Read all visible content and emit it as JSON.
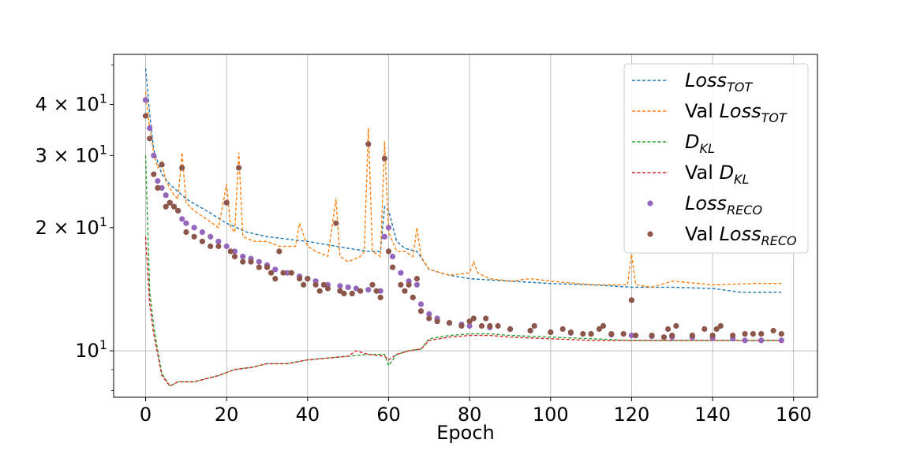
{
  "chart_data": {
    "type": "line",
    "xlabel": "Epoch",
    "ylabel": "",
    "xlim": [
      -7.9,
      165.9
    ],
    "ylim": [
      7.7,
      53
    ],
    "yscale": "log",
    "grid": true,
    "legend_position": "top-right",
    "x_ticks": [
      0,
      20,
      40,
      60,
      80,
      100,
      120,
      140,
      160
    ],
    "y_ticks": [
      {
        "value": 10,
        "base": "10",
        "exp": "1",
        "coef": ""
      },
      {
        "value": 20,
        "base": "10",
        "exp": "1",
        "coef": "2 × "
      },
      {
        "value": 30,
        "base": "10",
        "exp": "1",
        "coef": "3 × "
      },
      {
        "value": 40,
        "base": "10",
        "exp": "1",
        "coef": "4 × "
      }
    ],
    "series": [
      {
        "label_main": "Loss",
        "label_prefix": "",
        "label_sub": "TOT",
        "style": "dashed",
        "color": "#1f77b4",
        "points": [
          [
            0,
            49
          ],
          [
            1,
            38
          ],
          [
            2,
            31
          ],
          [
            4,
            27
          ],
          [
            6,
            25.5
          ],
          [
            10,
            23.5
          ],
          [
            15,
            22
          ],
          [
            20,
            20.5
          ],
          [
            25,
            19.5
          ],
          [
            30,
            19
          ],
          [
            40,
            18.5
          ],
          [
            50,
            17.8
          ],
          [
            55,
            17.5
          ],
          [
            58,
            17.5
          ],
          [
            59,
            22.5
          ],
          [
            60,
            22
          ],
          [
            62,
            18.5
          ],
          [
            64,
            17.8
          ],
          [
            67,
            17.5
          ],
          [
            70,
            15.8
          ],
          [
            75,
            15.3
          ],
          [
            80,
            15
          ],
          [
            90,
            14.8
          ],
          [
            100,
            14.6
          ],
          [
            110,
            14.5
          ],
          [
            120,
            14.3
          ],
          [
            130,
            14.3
          ],
          [
            140,
            14.2
          ],
          [
            147,
            13.9
          ],
          [
            157,
            13.9
          ]
        ]
      },
      {
        "label_main": "Loss",
        "label_prefix": "Val ",
        "label_sub": "TOT",
        "style": "dashed",
        "color": "#ff7f0e",
        "points": [
          [
            0,
            43
          ],
          [
            1,
            35
          ],
          [
            2,
            30.5
          ],
          [
            3,
            28
          ],
          [
            4,
            29
          ],
          [
            5,
            26
          ],
          [
            6,
            25
          ],
          [
            7,
            24
          ],
          [
            8,
            23.5
          ],
          [
            9,
            30.5
          ],
          [
            10,
            23
          ],
          [
            12,
            22
          ],
          [
            15,
            21
          ],
          [
            18,
            20
          ],
          [
            20,
            25.5
          ],
          [
            21,
            20
          ],
          [
            22,
            19.5
          ],
          [
            23,
            30.5
          ],
          [
            24,
            19
          ],
          [
            27,
            18.5
          ],
          [
            30,
            18.5
          ],
          [
            33,
            18
          ],
          [
            35,
            18
          ],
          [
            37,
            18
          ],
          [
            38,
            20.5
          ],
          [
            40,
            18
          ],
          [
            42,
            17.5
          ],
          [
            45,
            17
          ],
          [
            47,
            23.5
          ],
          [
            48,
            17
          ],
          [
            50,
            16.5
          ],
          [
            53,
            17
          ],
          [
            54,
            17.5
          ],
          [
            55,
            35
          ],
          [
            56,
            17.5
          ],
          [
            58,
            17
          ],
          [
            59,
            32.5
          ],
          [
            60,
            19.5
          ],
          [
            62,
            17.5
          ],
          [
            64,
            17.5
          ],
          [
            66,
            17
          ],
          [
            67,
            20
          ],
          [
            68,
            17
          ],
          [
            70,
            15.8
          ],
          [
            75,
            15.3
          ],
          [
            80,
            15.5
          ],
          [
            81,
            16.5
          ],
          [
            82,
            15.5
          ],
          [
            85,
            15
          ],
          [
            90,
            14.8
          ],
          [
            95,
            15
          ],
          [
            100,
            14.8
          ],
          [
            110,
            14.5
          ],
          [
            119,
            14.5
          ],
          [
            120,
            17.2
          ],
          [
            121,
            14.5
          ],
          [
            125,
            14.3
          ],
          [
            130,
            14.8
          ],
          [
            140,
            14.5
          ],
          [
            150,
            14.6
          ],
          [
            157,
            14.6
          ]
        ]
      },
      {
        "label_main": "D",
        "label_prefix": "",
        "label_sub": "KL",
        "style": "dashed",
        "color": "#2ca02c",
        "points": [
          [
            0,
            30
          ],
          [
            1,
            14
          ],
          [
            2,
            11.5
          ],
          [
            3,
            10
          ],
          [
            4,
            8.8
          ],
          [
            6,
            8.2
          ],
          [
            8,
            8.4
          ],
          [
            12,
            8.4
          ],
          [
            18,
            8.7
          ],
          [
            22,
            9
          ],
          [
            26,
            9.1
          ],
          [
            30,
            9.3
          ],
          [
            35,
            9.3
          ],
          [
            40,
            9.5
          ],
          [
            45,
            9.6
          ],
          [
            50,
            9.7
          ],
          [
            55,
            9.8
          ],
          [
            59,
            9.8
          ],
          [
            60,
            9.2
          ],
          [
            62,
            9.8
          ],
          [
            65,
            10
          ],
          [
            68,
            10.1
          ],
          [
            70,
            10.7
          ],
          [
            75,
            10.9
          ],
          [
            80,
            11
          ],
          [
            85,
            11
          ],
          [
            90,
            10.9
          ],
          [
            100,
            10.8
          ],
          [
            110,
            10.7
          ],
          [
            120,
            10.6
          ],
          [
            130,
            10.6
          ],
          [
            140,
            10.6
          ],
          [
            157,
            10.6
          ]
        ]
      },
      {
        "label_main": "D",
        "label_prefix": "Val ",
        "label_sub": "KL",
        "style": "dashed",
        "color": "#d62728",
        "points": [
          [
            0,
            19
          ],
          [
            1,
            13
          ],
          [
            2,
            11
          ],
          [
            3,
            9.8
          ],
          [
            4,
            8.7
          ],
          [
            6,
            8.2
          ],
          [
            8,
            8.4
          ],
          [
            12,
            8.4
          ],
          [
            18,
            8.7
          ],
          [
            22,
            9
          ],
          [
            26,
            9.1
          ],
          [
            30,
            9.3
          ],
          [
            35,
            9.3
          ],
          [
            40,
            9.5
          ],
          [
            45,
            9.6
          ],
          [
            50,
            9.7
          ],
          [
            52,
            10
          ],
          [
            55,
            9.8
          ],
          [
            59,
            9.7
          ],
          [
            60,
            9.5
          ],
          [
            62,
            9.8
          ],
          [
            65,
            10
          ],
          [
            68,
            10.1
          ],
          [
            70,
            10.6
          ],
          [
            75,
            10.8
          ],
          [
            80,
            10.9
          ],
          [
            85,
            10.9
          ],
          [
            90,
            10.8
          ],
          [
            100,
            10.7
          ],
          [
            110,
            10.6
          ],
          [
            120,
            10.6
          ],
          [
            130,
            10.6
          ],
          [
            140,
            10.6
          ],
          [
            157,
            10.6
          ]
        ]
      },
      {
        "label_main": "Loss",
        "label_prefix": "",
        "label_sub": "RECO",
        "style": "markers",
        "color": "#9467bd",
        "points": [
          [
            0,
            41
          ],
          [
            1,
            35
          ],
          [
            2,
            30
          ],
          [
            3,
            26
          ],
          [
            4,
            25
          ],
          [
            5,
            24
          ],
          [
            6,
            23
          ],
          [
            7,
            22.5
          ],
          [
            8,
            22
          ],
          [
            9,
            21
          ],
          [
            10,
            20.5
          ],
          [
            12,
            20
          ],
          [
            14,
            19.5
          ],
          [
            16,
            19
          ],
          [
            18,
            18.5
          ],
          [
            20,
            18
          ],
          [
            22,
            17.5
          ],
          [
            24,
            17
          ],
          [
            26,
            16.8
          ],
          [
            28,
            16.5
          ],
          [
            30,
            16.2
          ],
          [
            32,
            15.8
          ],
          [
            35,
            15.5
          ],
          [
            38,
            15.2
          ],
          [
            40,
            15
          ],
          [
            42,
            14.8
          ],
          [
            45,
            14.5
          ],
          [
            48,
            14.4
          ],
          [
            50,
            14.3
          ],
          [
            52,
            14.2
          ],
          [
            55,
            14.1
          ],
          [
            58,
            14
          ],
          [
            59,
            19
          ],
          [
            60,
            20
          ],
          [
            61,
            17
          ],
          [
            63,
            15.5
          ],
          [
            65,
            14.8
          ],
          [
            67,
            14.5
          ],
          [
            68,
            13
          ],
          [
            70,
            12.3
          ],
          [
            72,
            12
          ],
          [
            75,
            11.7
          ],
          [
            78,
            11.6
          ],
          [
            80,
            11.5
          ],
          [
            85,
            11.4
          ],
          [
            90,
            11.3
          ],
          [
            95,
            11.2
          ],
          [
            100,
            11.1
          ],
          [
            105,
            11.05
          ],
          [
            110,
            11
          ],
          [
            115,
            10.95
          ],
          [
            120,
            10.9
          ],
          [
            125,
            10.85
          ],
          [
            130,
            10.8
          ],
          [
            135,
            10.8
          ],
          [
            140,
            10.75
          ],
          [
            145,
            10.7
          ],
          [
            148,
            10.6
          ],
          [
            152,
            10.6
          ],
          [
            157,
            10.6
          ]
        ]
      },
      {
        "label_main": "Loss",
        "label_prefix": "Val ",
        "label_sub": "RECO",
        "style": "markers",
        "color": "#8c564b",
        "points": [
          [
            0,
            37.5
          ],
          [
            1,
            33
          ],
          [
            2,
            27
          ],
          [
            3,
            25
          ],
          [
            4,
            28.5
          ],
          [
            5,
            22.5
          ],
          [
            6,
            23
          ],
          [
            7,
            22.5
          ],
          [
            8,
            22
          ],
          [
            9,
            28
          ],
          [
            10,
            19.5
          ],
          [
            12,
            19
          ],
          [
            14,
            18.5
          ],
          [
            16,
            18
          ],
          [
            18,
            18
          ],
          [
            20,
            23
          ],
          [
            21,
            17.5
          ],
          [
            22,
            17
          ],
          [
            23,
            28
          ],
          [
            24,
            16.5
          ],
          [
            26,
            16.5
          ],
          [
            28,
            16
          ],
          [
            30,
            16
          ],
          [
            31,
            15.5
          ],
          [
            32,
            15
          ],
          [
            33,
            17.5
          ],
          [
            34,
            15.5
          ],
          [
            36,
            15.5
          ],
          [
            38,
            15
          ],
          [
            39,
            14.5
          ],
          [
            40,
            15
          ],
          [
            42,
            14.5
          ],
          [
            43,
            14
          ],
          [
            44,
            14.5
          ],
          [
            45,
            14.2
          ],
          [
            47,
            20.5
          ],
          [
            48,
            14
          ],
          [
            49,
            13.8
          ],
          [
            51,
            13.8
          ],
          [
            53,
            14
          ],
          [
            55,
            32
          ],
          [
            56,
            14.5
          ],
          [
            57,
            14
          ],
          [
            58,
            13.5
          ],
          [
            59,
            29.5
          ],
          [
            60,
            17.5
          ],
          [
            61,
            16
          ],
          [
            63,
            14.5
          ],
          [
            64,
            14
          ],
          [
            65,
            14.5
          ],
          [
            66,
            13.5
          ],
          [
            67,
            15
          ],
          [
            68,
            12.5
          ],
          [
            70,
            12
          ],
          [
            72,
            11.8
          ],
          [
            75,
            11.7
          ],
          [
            78,
            11.5
          ],
          [
            80,
            11.8
          ],
          [
            81,
            12
          ],
          [
            83,
            11.5
          ],
          [
            84,
            12
          ],
          [
            85,
            11.5
          ],
          [
            87,
            11.5
          ],
          [
            90,
            11.3
          ],
          [
            95,
            11.2
          ],
          [
            96,
            11.5
          ],
          [
            100,
            11.1
          ],
          [
            103,
            11.3
          ],
          [
            105,
            11.1
          ],
          [
            108,
            11
          ],
          [
            110,
            11
          ],
          [
            112,
            11.3
          ],
          [
            113,
            11.5
          ],
          [
            115,
            11
          ],
          [
            118,
            11
          ],
          [
            120,
            13.3
          ],
          [
            121,
            10.9
          ],
          [
            125,
            10.9
          ],
          [
            128,
            10.8
          ],
          [
            129,
            11.3
          ],
          [
            130,
            10.9
          ],
          [
            131,
            11.5
          ],
          [
            135,
            10.9
          ],
          [
            138,
            11.3
          ],
          [
            140,
            10.9
          ],
          [
            141,
            11.3
          ],
          [
            142,
            11.5
          ],
          [
            145,
            10.9
          ],
          [
            148,
            11
          ],
          [
            150,
            11
          ],
          [
            152,
            11
          ],
          [
            155,
            11.2
          ],
          [
            157,
            11
          ]
        ]
      }
    ]
  }
}
